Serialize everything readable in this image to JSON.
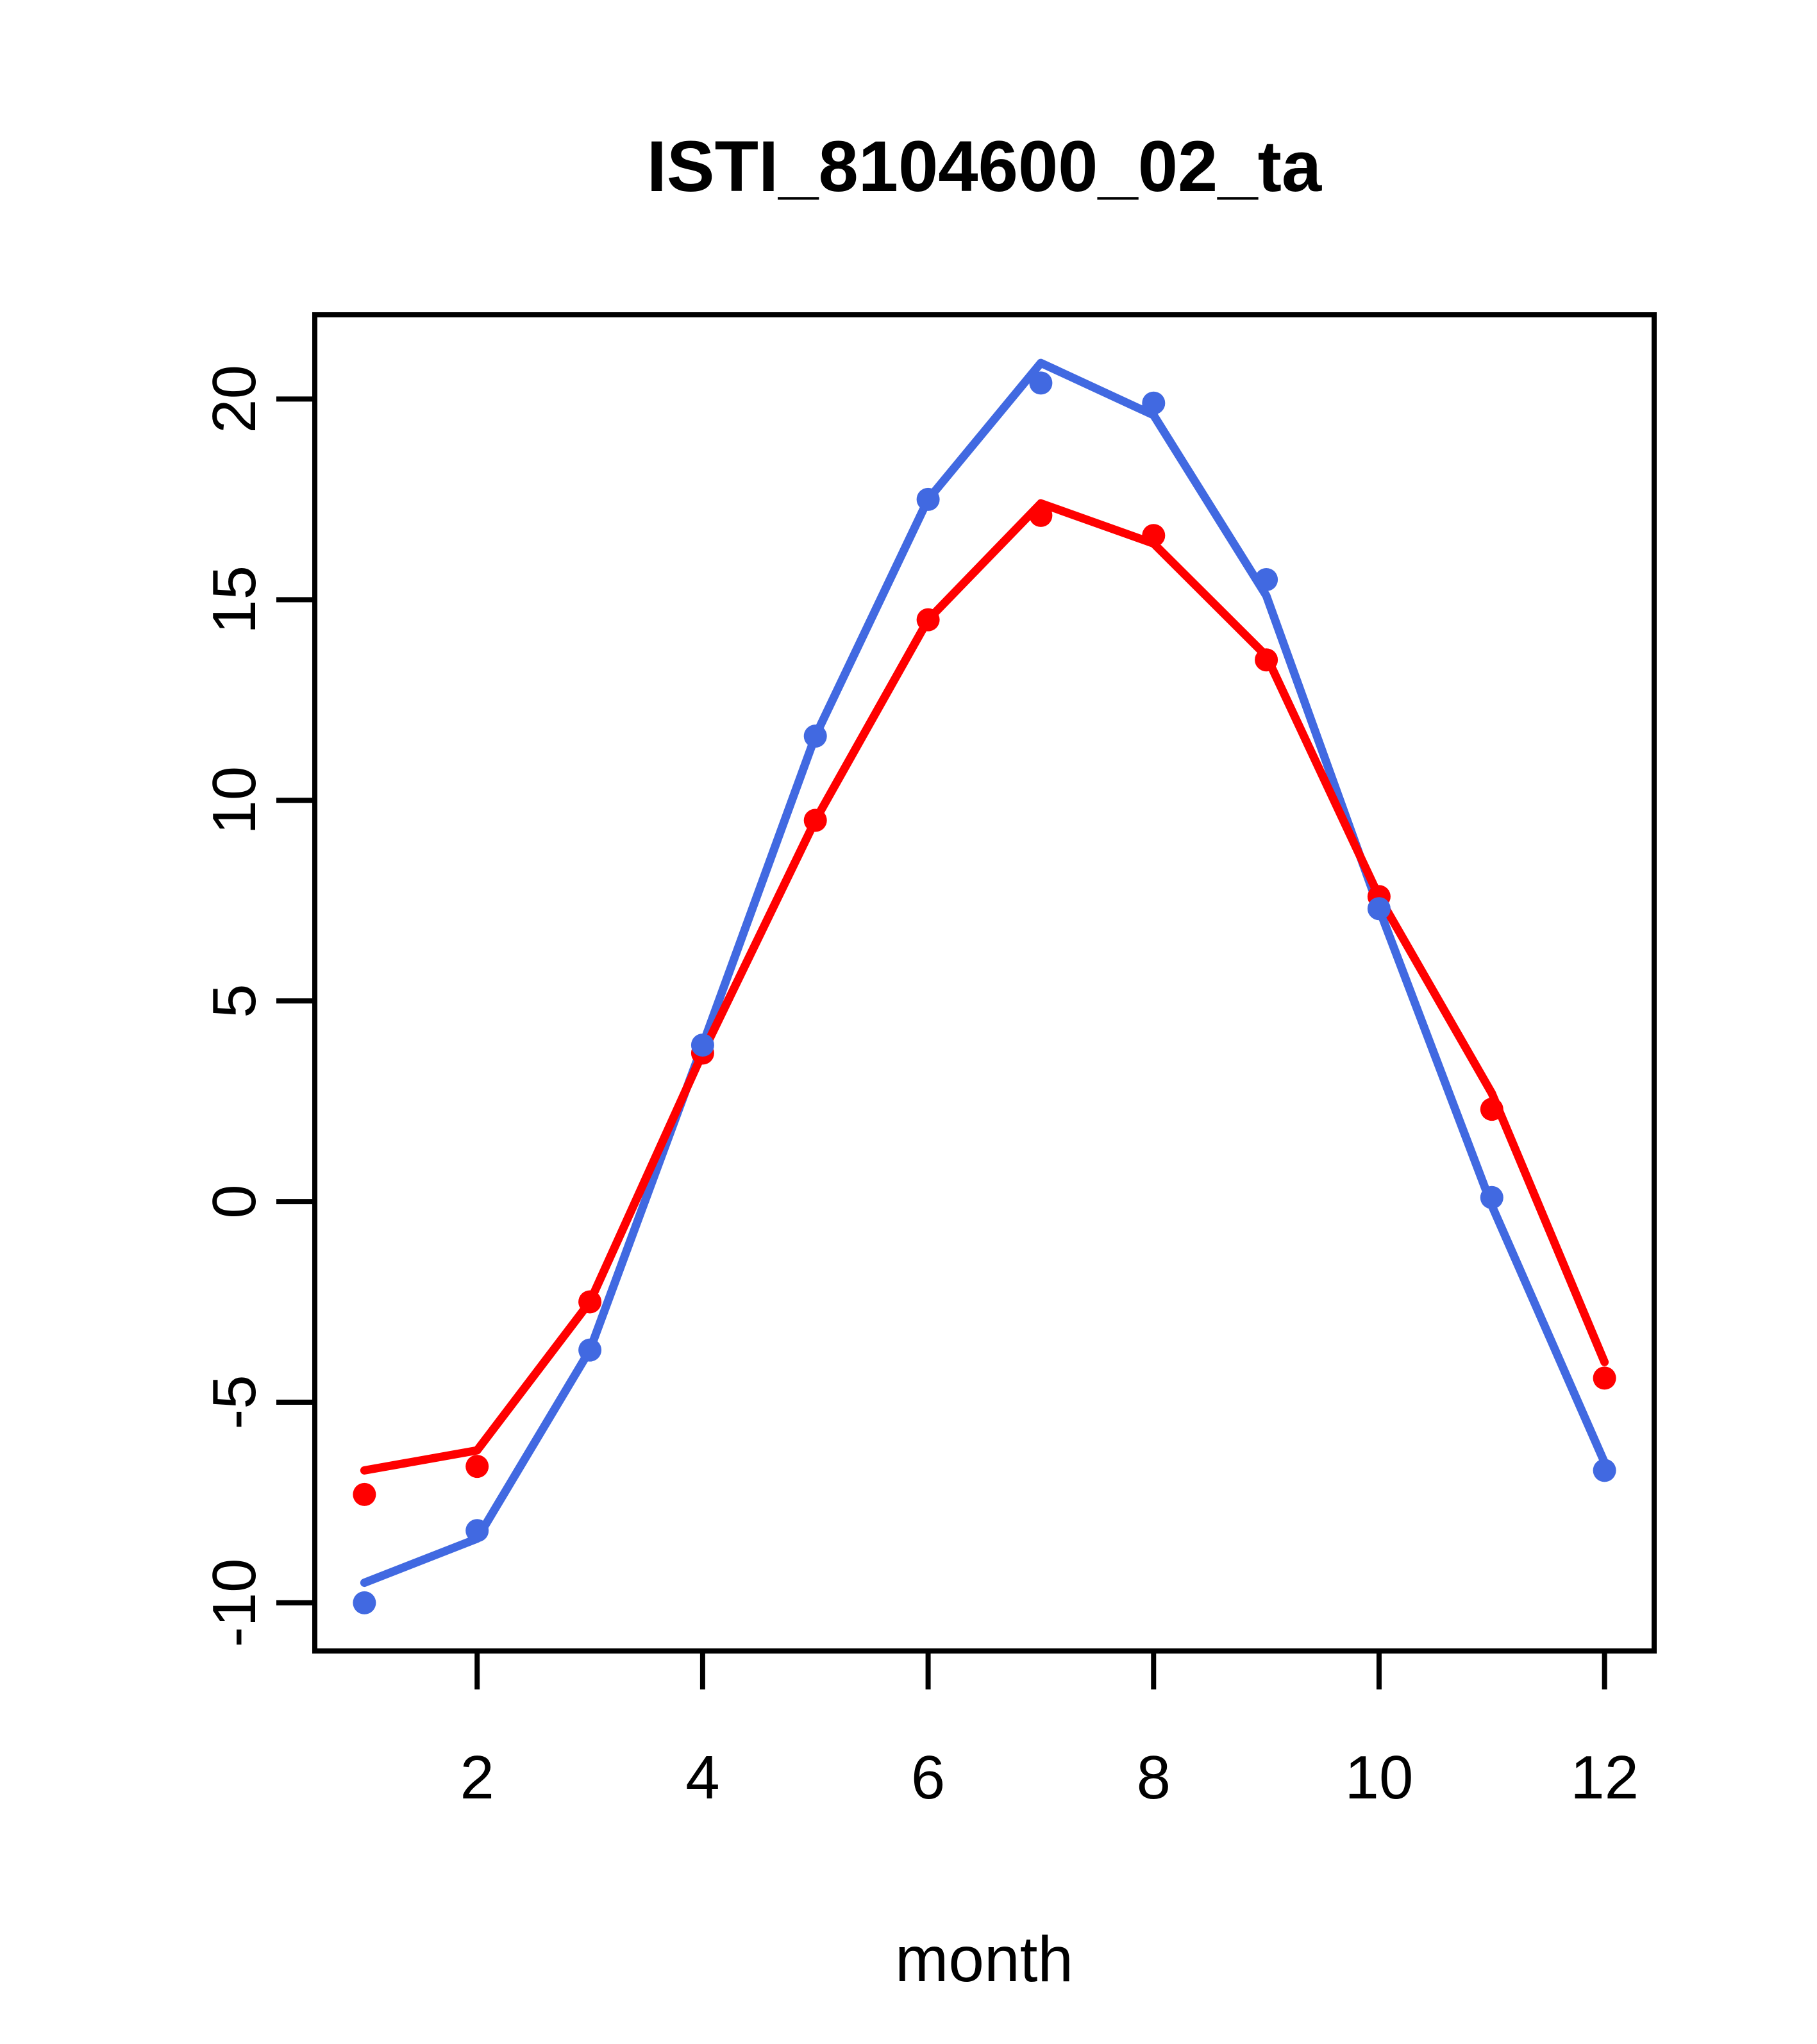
{
  "title": "ISTI_8104600_02_ta",
  "chart_data": {
    "type": "line",
    "title": "ISTI_8104600_02_ta",
    "xlabel": "month",
    "ylabel": "",
    "x": [
      1,
      2,
      3,
      4,
      5,
      6,
      7,
      8,
      9,
      10,
      11,
      12
    ],
    "xlim": [
      0.56,
      12.44
    ],
    "ylim": [
      -11.2,
      22.1
    ],
    "xticks": [
      2,
      4,
      6,
      8,
      10,
      12
    ],
    "yticks": [
      -10,
      -5,
      0,
      5,
      10,
      15,
      20
    ],
    "grid": false,
    "legend_position": "none",
    "axis_color": "#000000",
    "background": "#FFFFFF",
    "series": [
      {
        "name": "blue-line",
        "kind": "line",
        "color": "#4169E1",
        "values": [
          -9.5,
          -8.4,
          -3.7,
          3.9,
          11.6,
          17.5,
          20.9,
          19.6,
          15.1,
          7.3,
          -0.1,
          -6.5
        ]
      },
      {
        "name": "red-line",
        "kind": "line",
        "color": "#FF0000",
        "values": [
          -6.7,
          -6.2,
          -2.5,
          3.7,
          9.5,
          14.5,
          17.4,
          16.4,
          13.6,
          7.6,
          2.7,
          -4.0
        ]
      },
      {
        "name": "red-points",
        "kind": "scatter",
        "color": "#FF0000",
        "values": [
          -7.3,
          -6.6,
          -2.5,
          3.7,
          9.5,
          14.5,
          17.1,
          16.6,
          13.5,
          7.6,
          2.3,
          -4.4
        ]
      },
      {
        "name": "blue-points",
        "kind": "scatter",
        "color": "#4169E1",
        "values": [
          -10.0,
          -8.2,
          -3.7,
          3.9,
          11.6,
          17.5,
          20.4,
          19.9,
          15.5,
          7.3,
          0.1,
          -6.7
        ]
      }
    ]
  }
}
